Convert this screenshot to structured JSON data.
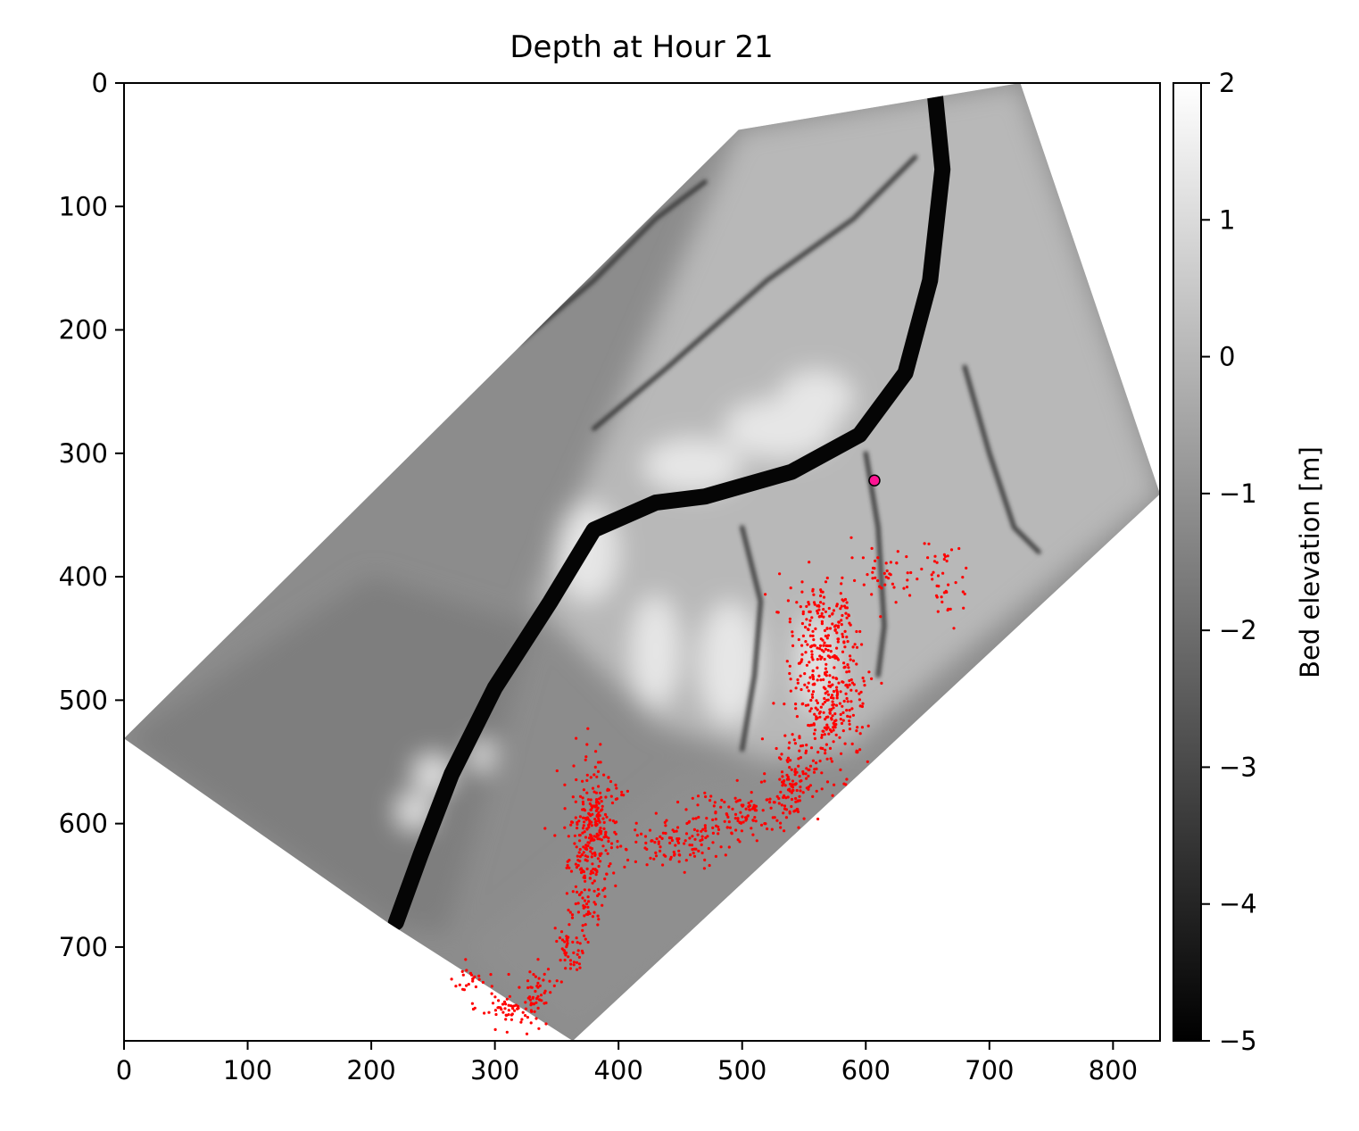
{
  "chart_data": {
    "type": "heatmap",
    "title": "Depth at Hour 21",
    "xlim": [
      0,
      838
    ],
    "ylim": [
      776,
      0
    ],
    "x_ticks": [
      0,
      100,
      200,
      300,
      400,
      500,
      600,
      700,
      800
    ],
    "y_ticks": [
      0,
      100,
      200,
      300,
      400,
      500,
      600,
      700
    ],
    "colormap": "gray",
    "colorbar": {
      "label": "Bed elevation [m]",
      "range": [
        -5,
        2
      ],
      "ticks": [
        2,
        1,
        0,
        -1,
        -2,
        -3,
        -4,
        -5
      ],
      "tick_labels": [
        "2",
        "1",
        "0",
        "−1",
        "−2",
        "−3",
        "−4",
        "−5"
      ]
    },
    "domain_polygon": [
      [
        0,
        531
      ],
      [
        497,
        38
      ],
      [
        725,
        0
      ],
      [
        838,
        333
      ],
      [
        363,
        776
      ],
      [
        213,
        680
      ]
    ],
    "main_channel": [
      [
        655,
        0
      ],
      [
        662,
        70
      ],
      [
        652,
        160
      ],
      [
        632,
        235
      ],
      [
        595,
        285
      ],
      [
        540,
        315
      ],
      [
        470,
        335
      ],
      [
        430,
        340
      ],
      [
        380,
        362
      ],
      [
        345,
        420
      ],
      [
        300,
        490
      ],
      [
        265,
        560
      ],
      [
        240,
        625
      ],
      [
        220,
        680
      ]
    ],
    "highlight_point": {
      "x": 607,
      "y": 322,
      "color": "#ff1493"
    },
    "particle_color": "#ff0000",
    "particle_clusters": [
      {
        "cx": 570,
        "cy": 495,
        "sx": 22,
        "sy": 45,
        "n": 320
      },
      {
        "cx": 565,
        "cy": 430,
        "sx": 25,
        "sy": 25,
        "n": 110
      },
      {
        "cx": 620,
        "cy": 395,
        "sx": 20,
        "sy": 15,
        "n": 40
      },
      {
        "cx": 665,
        "cy": 405,
        "sx": 15,
        "sy": 22,
        "n": 40
      },
      {
        "cx": 540,
        "cy": 565,
        "sx": 15,
        "sy": 22,
        "n": 110
      },
      {
        "cx": 500,
        "cy": 595,
        "sx": 30,
        "sy": 15,
        "n": 110
      },
      {
        "cx": 440,
        "cy": 615,
        "sx": 30,
        "sy": 15,
        "n": 110
      },
      {
        "cx": 380,
        "cy": 600,
        "sx": 15,
        "sy": 35,
        "n": 250
      },
      {
        "cx": 375,
        "cy": 660,
        "sx": 10,
        "sy": 20,
        "n": 60
      },
      {
        "cx": 360,
        "cy": 700,
        "sx": 8,
        "sy": 18,
        "n": 50
      },
      {
        "cx": 335,
        "cy": 735,
        "sx": 8,
        "sy": 15,
        "n": 40
      },
      {
        "cx": 315,
        "cy": 750,
        "sx": 18,
        "sy": 10,
        "n": 60
      },
      {
        "cx": 280,
        "cy": 725,
        "sx": 15,
        "sy": 10,
        "n": 25
      }
    ]
  }
}
